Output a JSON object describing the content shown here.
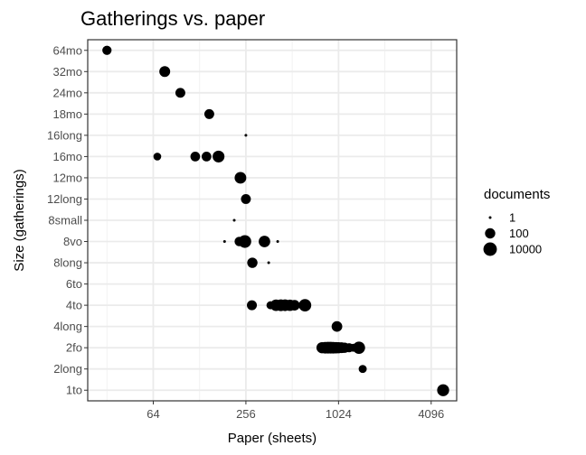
{
  "chart_data": {
    "type": "scatter",
    "title": "Gatherings vs. paper",
    "xlabel": "Paper (sheets)",
    "ylabel": "Size (gatherings)",
    "x_scale": "log2",
    "xlim": [
      24,
      6000
    ],
    "xticks": [
      64,
      256,
      1024,
      4096
    ],
    "categories": [
      "1to",
      "2long",
      "2fo",
      "4long",
      "4to",
      "6to",
      "8long",
      "8vo",
      "8small",
      "12long",
      "12mo",
      "16mo",
      "16long",
      "18mo",
      "24mo",
      "32mo",
      "64mo"
    ],
    "grid": true,
    "legend": {
      "title": "documents",
      "position": "right",
      "entries": [
        {
          "label": "1",
          "value": 1
        },
        {
          "label": "100",
          "value": 100
        },
        {
          "label": "10000",
          "value": 10000
        }
      ]
    },
    "points": [
      {
        "x": 32,
        "y": "64mo",
        "documents": 30
      },
      {
        "x": 76,
        "y": "32mo",
        "documents": 200
      },
      {
        "x": 96,
        "y": "24mo",
        "documents": 60
      },
      {
        "x": 148,
        "y": "18mo",
        "documents": 60
      },
      {
        "x": 256,
        "y": "16long",
        "documents": 1
      },
      {
        "x": 68,
        "y": "16mo",
        "documents": 8
      },
      {
        "x": 120,
        "y": "16mo",
        "documents": 50
      },
      {
        "x": 142,
        "y": "16mo",
        "documents": 50
      },
      {
        "x": 170,
        "y": "16mo",
        "documents": 800
      },
      {
        "x": 236,
        "y": "12mo",
        "documents": 600
      },
      {
        "x": 256,
        "y": "12long",
        "documents": 60
      },
      {
        "x": 215,
        "y": "8small",
        "documents": 1
      },
      {
        "x": 186,
        "y": "8vo",
        "documents": 1
      },
      {
        "x": 232,
        "y": "8vo",
        "documents": 40
      },
      {
        "x": 252,
        "y": "8vo",
        "documents": 3000
      },
      {
        "x": 338,
        "y": "8vo",
        "documents": 500
      },
      {
        "x": 412,
        "y": "8vo",
        "documents": 1
      },
      {
        "x": 282,
        "y": "8long",
        "documents": 100
      },
      {
        "x": 360,
        "y": "8long",
        "documents": 1
      },
      {
        "x": 280,
        "y": "4to",
        "documents": 70
      },
      {
        "x": 370,
        "y": "4to",
        "documents": 10
      },
      {
        "x": 402,
        "y": "4to",
        "documents": 500
      },
      {
        "x": 432,
        "y": "4to",
        "documents": 700
      },
      {
        "x": 460,
        "y": "4to",
        "documents": 600
      },
      {
        "x": 495,
        "y": "4to",
        "documents": 400
      },
      {
        "x": 530,
        "y": "4to",
        "documents": 150
      },
      {
        "x": 620,
        "y": "4to",
        "documents": 2000
      },
      {
        "x": 1000,
        "y": "4long",
        "documents": 150
      },
      {
        "x": 800,
        "y": "2fo",
        "documents": 300
      },
      {
        "x": 840,
        "y": "2fo",
        "documents": 600
      },
      {
        "x": 875,
        "y": "2fo",
        "documents": 700
      },
      {
        "x": 910,
        "y": "2fo",
        "documents": 700
      },
      {
        "x": 945,
        "y": "2fo",
        "documents": 600
      },
      {
        "x": 985,
        "y": "2fo",
        "documents": 400
      },
      {
        "x": 1025,
        "y": "2fo",
        "documents": 300
      },
      {
        "x": 1070,
        "y": "2fo",
        "documents": 200
      },
      {
        "x": 1120,
        "y": "2fo",
        "documents": 100
      },
      {
        "x": 1200,
        "y": "2fo",
        "documents": 30
      },
      {
        "x": 1280,
        "y": "2fo",
        "documents": 10
      },
      {
        "x": 1390,
        "y": "2fo",
        "documents": 1500
      },
      {
        "x": 1470,
        "y": "2long",
        "documents": 10
      },
      {
        "x": 4900,
        "y": "1to",
        "documents": 1000
      }
    ]
  }
}
